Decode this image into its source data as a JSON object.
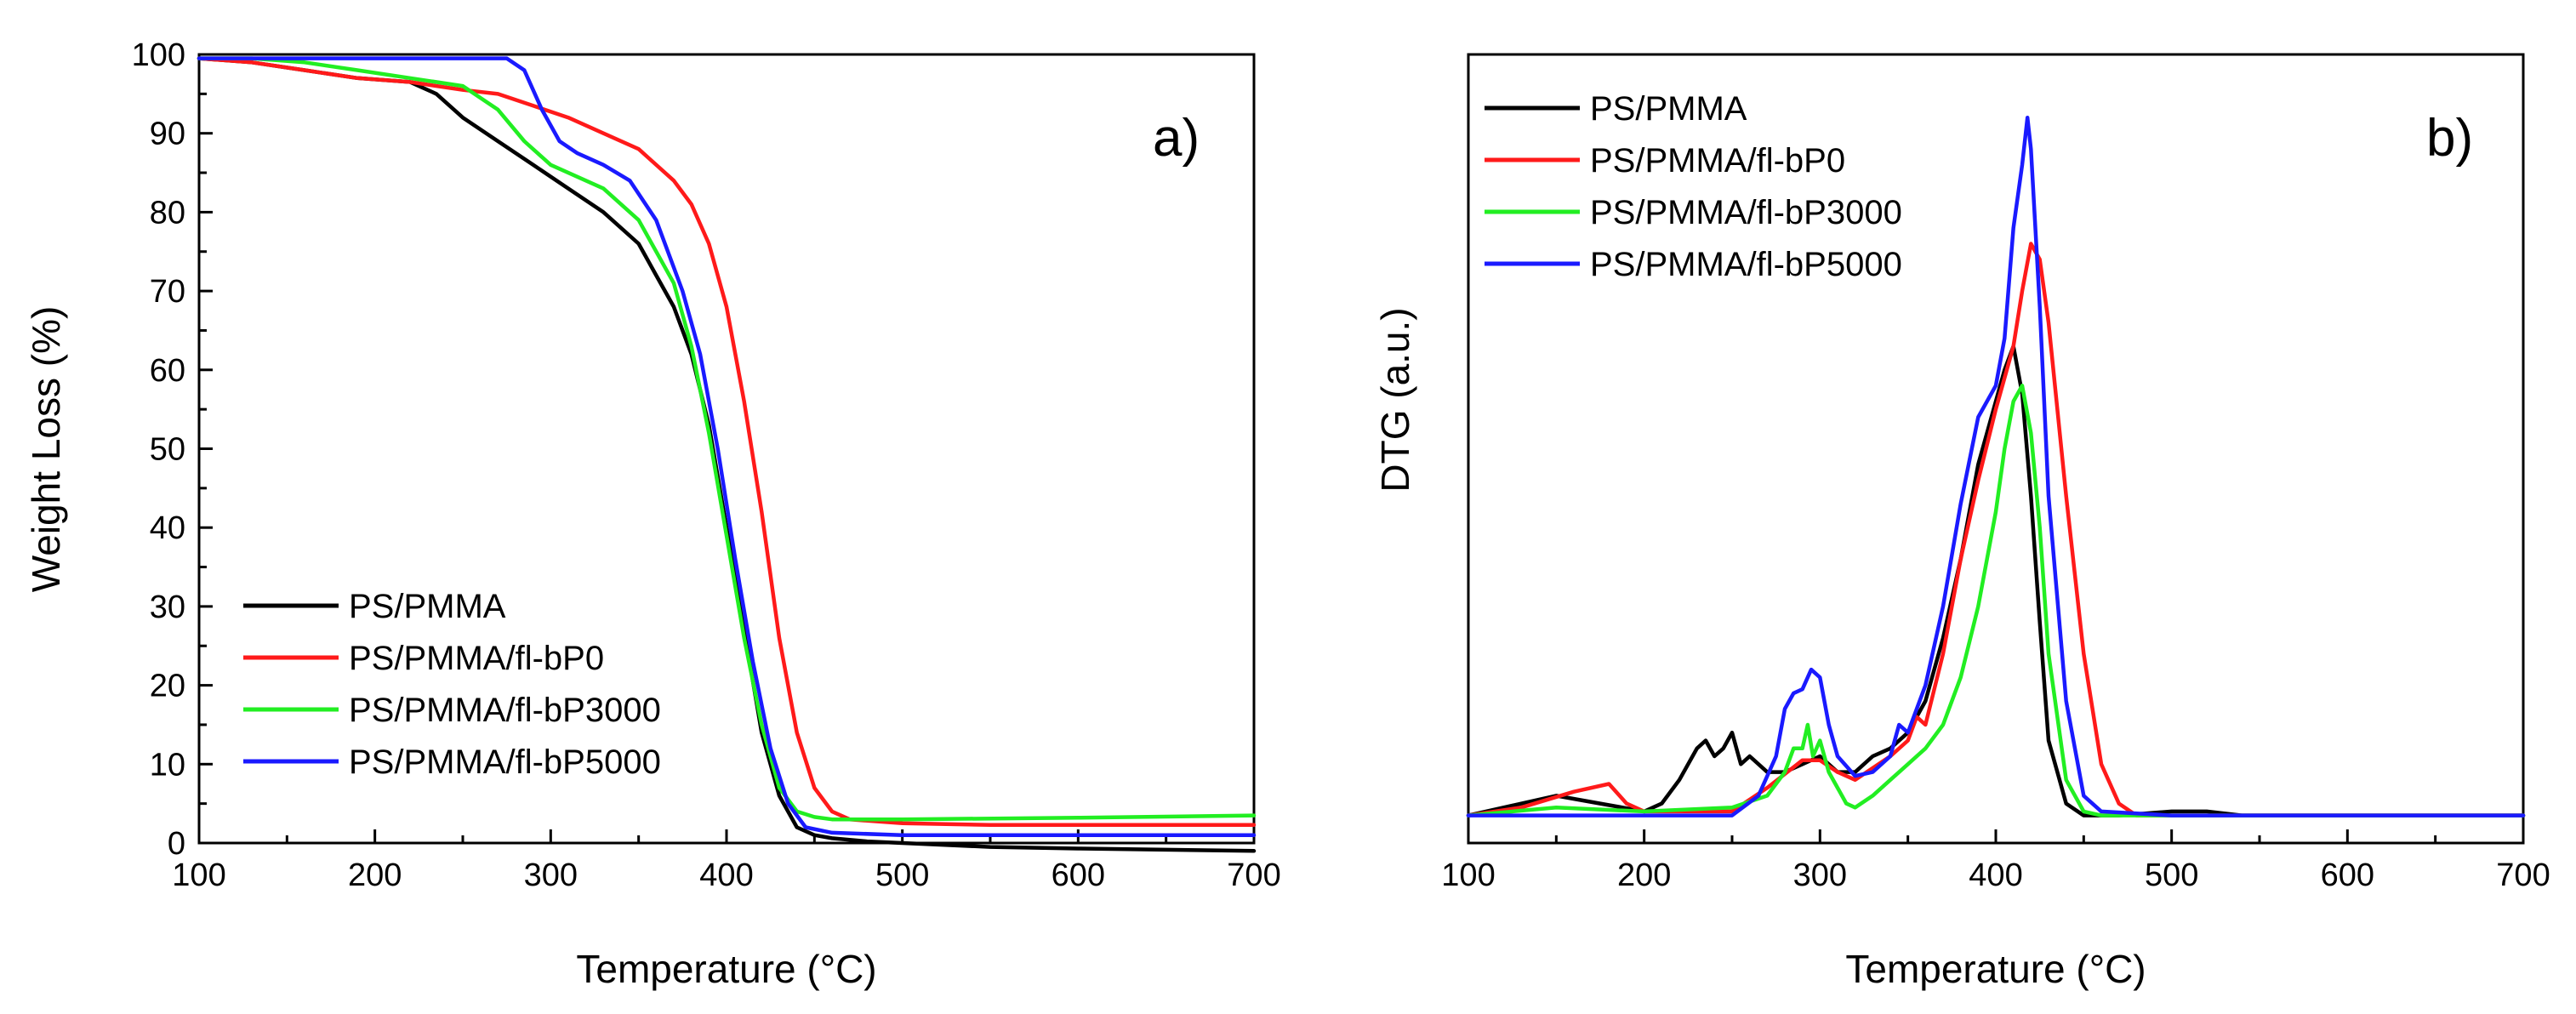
{
  "colors": {
    "PS/PMMA": "#000000",
    "PS/PMMA/fl-bP0": "#ff1a1a",
    "PS/PMMA/fl-bP3000": "#22ee22",
    "PS/PMMA/fl-bP5000": "#1a1aff"
  },
  "chart_data": [
    {
      "type": "line",
      "panel_label": "a)",
      "title": "",
      "xlabel": "Temperature (°C)",
      "ylabel": "Weight Loss (%)",
      "xlim": [
        100,
        700
      ],
      "ylim": [
        0,
        100
      ],
      "xticks": [
        100,
        200,
        300,
        400,
        500,
        600,
        700
      ],
      "yticks": [
        0,
        10,
        20,
        30,
        40,
        50,
        60,
        70,
        80,
        90,
        100
      ],
      "legend_position": "bottom-left",
      "series": [
        {
          "name": "PS/PMMA",
          "x": [
            100,
            130,
            160,
            190,
            220,
            235,
            250,
            270,
            290,
            310,
            330,
            350,
            360,
            370,
            380,
            390,
            400,
            410,
            420,
            430,
            440,
            450,
            460,
            480,
            500,
            550,
            600,
            700
          ],
          "y": [
            99.5,
            99,
            98,
            97,
            96.5,
            95,
            92,
            89,
            86,
            83,
            80,
            76,
            72,
            68,
            62,
            53,
            40,
            27,
            14,
            6,
            2,
            1,
            0.6,
            0.2,
            0,
            -0.5,
            -0.7,
            -1
          ]
        },
        {
          "name": "PS/PMMA/fl-bP0",
          "x": [
            100,
            130,
            160,
            190,
            220,
            250,
            270,
            290,
            310,
            330,
            350,
            370,
            380,
            390,
            400,
            410,
            420,
            430,
            440,
            450,
            460,
            470,
            500,
            550,
            600,
            700
          ],
          "y": [
            99.5,
            99,
            98,
            97,
            96.5,
            95.5,
            95,
            93.5,
            92,
            90,
            88,
            84,
            81,
            76,
            68,
            56,
            42,
            26,
            14,
            7,
            4,
            3,
            2.5,
            2.3,
            2.3,
            2.3
          ]
        },
        {
          "name": "PS/PMMA/fl-bP3000",
          "x": [
            100,
            130,
            160,
            190,
            220,
            250,
            270,
            285,
            300,
            310,
            330,
            350,
            370,
            380,
            390,
            400,
            410,
            420,
            430,
            440,
            450,
            460,
            500,
            600,
            700
          ],
          "y": [
            99.5,
            99.5,
            99,
            98,
            97,
            96,
            93,
            89,
            86,
            85,
            83,
            79,
            71,
            63,
            52,
            39,
            26,
            15,
            7,
            4,
            3.3,
            3,
            3,
            3.2,
            3.5
          ]
        },
        {
          "name": "PS/PMMA/fl-bP5000",
          "x": [
            100,
            150,
            200,
            250,
            275,
            285,
            295,
            305,
            315,
            330,
            345,
            360,
            375,
            385,
            395,
            405,
            415,
            425,
            435,
            445,
            460,
            500,
            600,
            700
          ],
          "y": [
            99.5,
            99.5,
            99.5,
            99.5,
            99.5,
            98,
            93,
            89,
            87.5,
            86,
            84,
            79,
            70,
            62,
            50,
            36,
            23,
            12,
            5,
            2,
            1.3,
            1,
            1,
            1
          ]
        }
      ]
    },
    {
      "type": "line",
      "panel_label": "b)",
      "title": "",
      "xlabel": "Temperature (°C)",
      "ylabel": "DTG (a.u.)",
      "xlim": [
        100,
        700
      ],
      "ylim": [
        0,
        100
      ],
      "xticks": [
        100,
        200,
        300,
        400,
        500,
        600,
        700
      ],
      "yticks": [],
      "legend_position": "top-left",
      "series": [
        {
          "name": "PS/PMMA",
          "x": [
            100,
            150,
            175,
            200,
            210,
            220,
            230,
            235,
            240,
            245,
            250,
            255,
            260,
            270,
            280,
            290,
            300,
            310,
            320,
            330,
            340,
            350,
            360,
            370,
            380,
            390,
            400,
            405,
            410,
            415,
            420,
            425,
            430,
            440,
            450,
            470,
            500,
            520,
            540,
            600,
            700
          ],
          "y": [
            3.5,
            6,
            5,
            4,
            5,
            8,
            12,
            13,
            11,
            12,
            14,
            10,
            11,
            9,
            9,
            10,
            11,
            9,
            9,
            11,
            12,
            14,
            18,
            26,
            36,
            48,
            56,
            60,
            63,
            57,
            44,
            28,
            13,
            5,
            3.5,
            3.5,
            4,
            4,
            3.5,
            3.5,
            3.5
          ]
        },
        {
          "name": "PS/PMMA/fl-bP0",
          "x": [
            100,
            130,
            160,
            180,
            190,
            200,
            220,
            250,
            270,
            290,
            300,
            310,
            320,
            330,
            340,
            350,
            355,
            360,
            370,
            380,
            390,
            400,
            410,
            415,
            420,
            425,
            430,
            440,
            450,
            460,
            470,
            480,
            500,
            600,
            700
          ],
          "y": [
            3.5,
            4.5,
            6.5,
            7.5,
            5,
            4,
            4,
            4,
            7,
            10.5,
            10.5,
            9,
            8,
            9.5,
            11,
            13,
            16,
            15,
            24,
            36,
            46,
            55,
            63,
            70,
            76,
            74,
            66,
            44,
            24,
            10,
            5,
            3.5,
            3.5,
            3.5,
            3.5
          ]
        },
        {
          "name": "PS/PMMA/fl-bP3000",
          "x": [
            100,
            150,
            200,
            250,
            270,
            280,
            285,
            290,
            293,
            296,
            300,
            305,
            310,
            315,
            320,
            330,
            340,
            350,
            360,
            370,
            380,
            390,
            400,
            405,
            410,
            415,
            420,
            425,
            430,
            440,
            450,
            460,
            500,
            600,
            700
          ],
          "y": [
            3.5,
            4.5,
            4,
            4.5,
            6,
            9,
            12,
            12,
            15,
            11,
            13,
            9,
            7,
            5,
            4.5,
            6,
            8,
            10,
            12,
            15,
            21,
            30,
            42,
            50,
            56,
            58,
            52,
            40,
            24,
            8,
            4,
            3.5,
            3.5,
            3.5,
            3.5
          ]
        },
        {
          "name": "PS/PMMA/fl-bP5000",
          "x": [
            100,
            150,
            200,
            250,
            265,
            275,
            280,
            285,
            290,
            295,
            300,
            305,
            310,
            320,
            330,
            340,
            345,
            350,
            360,
            370,
            380,
            390,
            400,
            405,
            410,
            415,
            418,
            420,
            425,
            430,
            440,
            450,
            460,
            500,
            600,
            700
          ],
          "y": [
            3.5,
            3.5,
            3.5,
            3.5,
            6,
            11,
            17,
            19,
            19.5,
            22,
            21,
            15,
            11,
            8.5,
            9,
            11,
            15,
            14,
            20,
            30,
            43,
            54,
            58,
            64,
            78,
            86,
            92,
            88,
            68,
            44,
            18,
            6,
            4,
            3.5,
            3.5,
            3.5
          ]
        }
      ]
    }
  ]
}
